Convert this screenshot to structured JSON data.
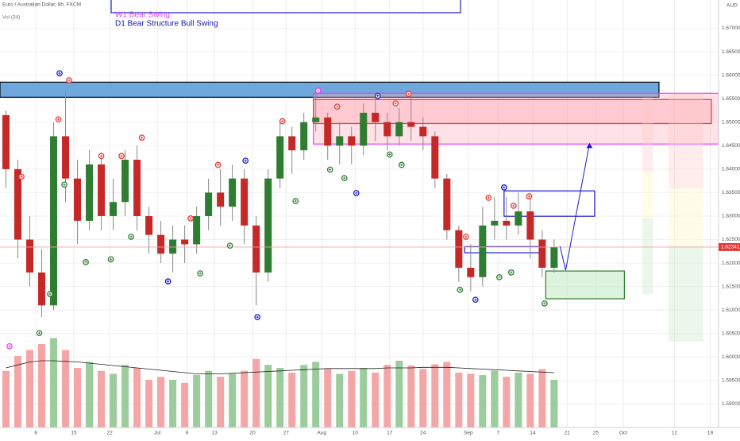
{
  "chart_data": {
    "type": "candlestick",
    "title": "Euro / Australian Dollar, 8h, FXCM",
    "volume_label": "Vol (34)",
    "currency": "AUD",
    "annotations": [
      {
        "text": "W1 Bear Swing",
        "color": "#e040fb"
      },
      {
        "text": "D1 Bear Structure Bull Swing",
        "color": "#1a1aa8"
      }
    ],
    "xlim": [
      -0.5,
      59.8
    ],
    "ylim": [
      1.585,
      1.676
    ],
    "xticks": [
      {
        "value": 2.5,
        "label": "8"
      },
      {
        "value": 5.7,
        "label": "15"
      },
      {
        "value": 8.7,
        "label": "22"
      },
      {
        "value": 12.7,
        "label": "Jul"
      },
      {
        "value": 15.2,
        "label": "6"
      },
      {
        "value": 17.5,
        "label": "13"
      },
      {
        "value": 20.7,
        "label": "20"
      },
      {
        "value": 23.5,
        "label": "27"
      },
      {
        "value": 26.5,
        "label": "Aug"
      },
      {
        "value": 29.3,
        "label": "10"
      },
      {
        "value": 32.2,
        "label": "17"
      },
      {
        "value": 35,
        "label": "24"
      },
      {
        "value": 38.8,
        "label": "Sep"
      },
      {
        "value": 41.3,
        "label": "7"
      },
      {
        "value": 44.2,
        "label": "14"
      },
      {
        "value": 47.1,
        "label": "21"
      },
      {
        "value": 49.5,
        "label": "25"
      },
      {
        "value": 51.8,
        "label": "Oct"
      },
      {
        "value": 56.1,
        "label": "12"
      },
      {
        "value": 59.1,
        "label": "19"
      }
    ],
    "yticks": [
      {
        "value": 1.67,
        "label": "1.67000"
      },
      {
        "value": 1.665,
        "label": "1.66500"
      },
      {
        "value": 1.66,
        "label": "1.66000"
      },
      {
        "value": 1.655,
        "label": "1.65500"
      },
      {
        "value": 1.65,
        "label": "1.65000"
      },
      {
        "value": 1.645,
        "label": "1.64500"
      },
      {
        "value": 1.64,
        "label": "1.64000"
      },
      {
        "value": 1.635,
        "label": "1.63500"
      },
      {
        "value": 1.63,
        "label": "1.63000"
      },
      {
        "value": 1.625,
        "label": "1.62500"
      },
      {
        "value": 1.62,
        "label": "1.62000"
      },
      {
        "value": 1.615,
        "label": "1.61500"
      },
      {
        "value": 1.61,
        "label": "1.61000"
      },
      {
        "value": 1.605,
        "label": "1.60500"
      },
      {
        "value": 1.6,
        "label": "1.60000"
      },
      {
        "value": 1.595,
        "label": "1.59500"
      },
      {
        "value": 1.59,
        "label": "1.59000"
      }
    ],
    "grid": true,
    "up_color": "#2e7d32",
    "down_color": "#c62828",
    "last_price": 1.62341,
    "open": [
      1.6515,
      1.64,
      1.625,
      1.618,
      1.611,
      1.647,
      1.638,
      1.629,
      1.641,
      1.63,
      1.633,
      1.642,
      1.63,
      1.626,
      1.622,
      1.625,
      1.624,
      1.63,
      1.635,
      1.632,
      1.638,
      1.628,
      1.618,
      1.638,
      1.647,
      1.644,
      1.65,
      1.651,
      1.645,
      1.647,
      1.645,
      1.652,
      1.65,
      1.647,
      1.65,
      1.649,
      1.647,
      1.638,
      1.627,
      1.619,
      1.617,
      1.628,
      1.629,
      1.628,
      1.631,
      1.625,
      1.619
    ],
    "high": [
      1.6525,
      1.642,
      1.63,
      1.623,
      1.65,
      1.6565,
      1.642,
      1.644,
      1.643,
      1.638,
      1.644,
      1.645,
      1.632,
      1.629,
      1.628,
      1.628,
      1.632,
      1.638,
      1.64,
      1.641,
      1.64,
      1.63,
      1.64,
      1.65,
      1.649,
      1.652,
      1.6565,
      1.652,
      1.65,
      1.649,
      1.654,
      1.6555,
      1.652,
      1.653,
      1.6555,
      1.651,
      1.648,
      1.639,
      1.628,
      1.624,
      1.632,
      1.634,
      1.634,
      1.635,
      1.634,
      1.627,
      1.625
    ],
    "low": [
      1.636,
      1.621,
      1.615,
      1.6085,
      1.61,
      1.633,
      1.624,
      1.627,
      1.627,
      1.627,
      1.63,
      1.627,
      1.622,
      1.62,
      1.618,
      1.62,
      1.622,
      1.627,
      1.628,
      1.629,
      1.624,
      1.611,
      1.616,
      1.636,
      1.639,
      1.642,
      1.648,
      1.642,
      1.641,
      1.641,
      1.643,
      1.646,
      1.644,
      1.645,
      1.646,
      1.644,
      1.636,
      1.625,
      1.616,
      1.614,
      1.615,
      1.625,
      1.625,
      1.626,
      1.621,
      1.617,
      1.618
    ],
    "close": [
      1.64,
      1.625,
      1.618,
      1.611,
      1.647,
      1.638,
      1.629,
      1.641,
      1.63,
      1.633,
      1.642,
      1.63,
      1.626,
      1.622,
      1.625,
      1.624,
      1.63,
      1.635,
      1.632,
      1.638,
      1.628,
      1.618,
      1.638,
      1.647,
      1.644,
      1.65,
      1.651,
      1.645,
      1.647,
      1.645,
      1.652,
      1.65,
      1.647,
      1.65,
      1.649,
      1.647,
      1.638,
      1.627,
      1.619,
      1.617,
      1.628,
      1.629,
      1.628,
      1.631,
      1.625,
      1.619,
      1.6234
    ],
    "volume": [
      95,
      120,
      130,
      140,
      150,
      130,
      100,
      110,
      95,
      90,
      105,
      100,
      80,
      85,
      80,
      75,
      88,
      95,
      85,
      90,
      95,
      115,
      105,
      100,
      92,
      105,
      110,
      98,
      90,
      95,
      100,
      92,
      105,
      112,
      104,
      98,
      106,
      110,
      92,
      90,
      88,
      95,
      85,
      92,
      90,
      98,
      80
    ],
    "volume_ma": [
      100,
      105,
      110,
      112,
      112,
      111,
      110,
      108,
      106,
      104,
      102,
      100,
      98,
      96,
      94,
      92,
      90,
      90,
      90,
      91,
      92,
      93,
      94,
      95,
      96,
      97,
      98,
      99,
      99,
      99,
      99,
      99,
      100,
      100,
      100,
      101,
      101,
      101,
      100,
      99,
      98,
      97,
      96,
      95,
      94,
      93,
      92
    ],
    "zones": [
      {
        "x": [
          -0.5,
          54.8
        ],
        "y": [
          1.6553,
          1.65851
        ],
        "fill": "#6fa8dc",
        "stroke": "#000000"
      },
      {
        "x": [
          25.8,
          59.8
        ],
        "y": [
          1.64534,
          1.65615
        ],
        "fill": "rgba(255,170,185,0.35)",
        "stroke": "#e040fb"
      },
      {
        "x": [
          25.8,
          59.2
        ],
        "y": [
          1.6497,
          1.6548
        ],
        "fill": "rgba(255,150,160,0.3)",
        "stroke": "#e53935"
      },
      {
        "x": [
          41.8,
          49.4
        ],
        "y": [
          1.62996,
          1.63537
        ],
        "fill": "none",
        "stroke": "#1a1acc"
      },
      {
        "x": [
          38.5,
          44.8
        ],
        "y": [
          1.6222,
          1.6235
        ],
        "fill": "none",
        "stroke": "#1a1acc"
      },
      {
        "x": [
          45.3,
          51.9
        ],
        "y": [
          1.6124,
          1.61831
        ],
        "fill": "rgba(200,235,200,0.6)",
        "stroke": "#2e7d32"
      },
      {
        "x": [
          53.4,
          54.3
        ],
        "y": [
          1.6396,
          1.6553
        ],
        "fill": "rgba(255,200,200,0.35)",
        "stroke": "none"
      },
      {
        "x": [
          53.4,
          54.3
        ],
        "y": [
          1.6295,
          1.6396
        ],
        "fill": "rgba(255,250,210,0.5)",
        "stroke": "none"
      },
      {
        "x": [
          53.4,
          54.3
        ],
        "y": [
          1.6134,
          1.6295
        ],
        "fill": "rgba(215,240,215,0.5)",
        "stroke": "none"
      },
      {
        "x": [
          55.6,
          58.5
        ],
        "y": [
          1.6359,
          1.6561
        ],
        "fill": "rgba(255,200,200,0.35)",
        "stroke": "none"
      },
      {
        "x": [
          55.6,
          58.5
        ],
        "y": [
          1.6236,
          1.6359
        ],
        "fill": "rgba(255,250,210,0.5)",
        "stroke": "none"
      },
      {
        "x": [
          55.6,
          58.5
        ],
        "y": [
          1.6033,
          1.6236
        ],
        "fill": "rgba(215,240,215,0.5)",
        "stroke": "none"
      }
    ],
    "arrow": {
      "x": [
        46.5,
        46.97,
        48.97
      ],
      "y": [
        1.62355,
        1.61848,
        1.64551
      ],
      "color": "#1a1acc"
    },
    "markers": [
      {
        "x": 1.3,
        "y": 1.6384,
        "color": "#e53935"
      },
      {
        "x": 4.4,
        "y": 1.6506,
        "color": "#e53935"
      },
      {
        "x": 5.3,
        "y": 1.6589,
        "color": "#e53935"
      },
      {
        "x": 8.0,
        "y": 1.6428,
        "color": "#e53935"
      },
      {
        "x": 9.7,
        "y": 1.6428,
        "color": "#e53935"
      },
      {
        "x": 11.4,
        "y": 1.6467,
        "color": "#e53935"
      },
      {
        "x": 15.5,
        "y": 1.6295,
        "color": "#e53935"
      },
      {
        "x": 17.8,
        "y": 1.6409,
        "color": "#e53935"
      },
      {
        "x": 23.2,
        "y": 1.6502,
        "color": "#e53935"
      },
      {
        "x": 27.8,
        "y": 1.6533,
        "color": "#e53935"
      },
      {
        "x": 32.7,
        "y": 1.654,
        "color": "#e53935"
      },
      {
        "x": 33.8,
        "y": 1.656,
        "color": "#e53935"
      },
      {
        "x": 38.6,
        "y": 1.6256,
        "color": "#e53935"
      },
      {
        "x": 40.5,
        "y": 1.6339,
        "color": "#e53935"
      },
      {
        "x": 42.6,
        "y": 1.6322,
        "color": "#e53935"
      },
      {
        "x": 43.9,
        "y": 1.6342,
        "color": "#e53935"
      },
      {
        "x": 2.8,
        "y": 1.6051,
        "color": "#2e7d32"
      },
      {
        "x": 3.7,
        "y": 1.6134,
        "color": "#2e7d32"
      },
      {
        "x": 4.9,
        "y": 1.6367,
        "color": "#2e7d32"
      },
      {
        "x": 6.7,
        "y": 1.6202,
        "color": "#2e7d32"
      },
      {
        "x": 8.8,
        "y": 1.6208,
        "color": "#2e7d32"
      },
      {
        "x": 10.5,
        "y": 1.6256,
        "color": "#2e7d32"
      },
      {
        "x": 16.3,
        "y": 1.6178,
        "color": "#2e7d32"
      },
      {
        "x": 18.8,
        "y": 1.6237,
        "color": "#2e7d32"
      },
      {
        "x": 24.3,
        "y": 1.6332,
        "color": "#2e7d32"
      },
      {
        "x": 27.2,
        "y": 1.6399,
        "color": "#2e7d32"
      },
      {
        "x": 28.4,
        "y": 1.6381,
        "color": "#2e7d32"
      },
      {
        "x": 32.2,
        "y": 1.6431,
        "color": "#2e7d32"
      },
      {
        "x": 33.2,
        "y": 1.6409,
        "color": "#2e7d32"
      },
      {
        "x": 38.1,
        "y": 1.6143,
        "color": "#2e7d32"
      },
      {
        "x": 41.4,
        "y": 1.617,
        "color": "#2e7d32"
      },
      {
        "x": 42.4,
        "y": 1.618,
        "color": "#2e7d32"
      },
      {
        "x": 45.2,
        "y": 1.6114,
        "color": "#2e7d32"
      },
      {
        "x": 4.5,
        "y": 1.6604,
        "color": "#1a1acc"
      },
      {
        "x": 13.6,
        "y": 1.6161,
        "color": "#1a1acc"
      },
      {
        "x": 20.1,
        "y": 1.6418,
        "color": "#1a1acc"
      },
      {
        "x": 21.1,
        "y": 1.6085,
        "color": "#1a1acc"
      },
      {
        "x": 29.4,
        "y": 1.6349,
        "color": "#1a1acc"
      },
      {
        "x": 31.2,
        "y": 1.6556,
        "color": "#1a1acc"
      },
      {
        "x": 39.4,
        "y": 1.6122,
        "color": "#1a1acc"
      },
      {
        "x": 41.8,
        "y": 1.6361,
        "color": "#1a1acc"
      },
      {
        "x": 0.3,
        "y": 1.6023,
        "color": "#e040fb"
      },
      {
        "x": 26.2,
        "y": 1.6567,
        "color": "#e040fb"
      }
    ]
  }
}
